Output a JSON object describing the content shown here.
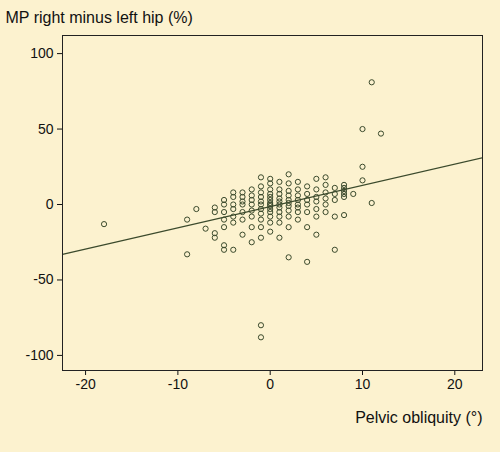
{
  "chart_data": {
    "type": "scatter",
    "xlabel": "Pelvic obliquity (°)",
    "ylabel": "MP right minus left hip (%)",
    "color": "#3b4a2c",
    "marker": "open_circle",
    "x": [
      -18,
      -9,
      -9,
      -8,
      -7,
      -6,
      -6,
      -6,
      -6,
      -5,
      -5,
      -5,
      -5,
      -5,
      -5,
      -5,
      -4,
      -4,
      -4,
      -4,
      -4,
      -4,
      -4,
      -3,
      -3,
      -3,
      -3,
      -3,
      -3,
      -3,
      -2,
      -2,
      -2,
      -2,
      -2,
      -2,
      -2,
      -2,
      -1,
      -1,
      -1,
      -1,
      -1,
      -1,
      -1,
      -1,
      -1,
      -1,
      -1,
      -1,
      -1,
      0,
      0,
      0,
      0,
      0,
      0,
      0,
      0,
      0,
      0,
      0,
      0,
      0,
      0,
      1,
      1,
      1,
      1,
      1,
      1,
      1,
      1,
      1,
      1,
      1,
      2,
      2,
      2,
      2,
      2,
      2,
      2,
      2,
      2,
      2,
      2,
      3,
      3,
      3,
      3,
      3,
      3,
      3,
      3,
      4,
      4,
      4,
      4,
      4,
      4,
      4,
      5,
      5,
      5,
      5,
      5,
      5,
      5,
      6,
      6,
      6,
      6,
      6,
      6,
      7,
      7,
      7,
      7,
      7,
      8,
      8,
      8,
      8,
      8,
      8,
      9,
      10,
      10,
      10,
      11,
      11,
      12
    ],
    "y": [
      -13,
      -33,
      -10,
      -3,
      -16,
      -22,
      -19,
      -5,
      -2,
      -30,
      -27,
      -15,
      -10,
      -5,
      0,
      3,
      -30,
      -12,
      -8,
      -3,
      0,
      5,
      8,
      -20,
      -10,
      -5,
      0,
      2,
      5,
      8,
      -25,
      -15,
      -8,
      -4,
      0,
      3,
      6,
      10,
      -88,
      -80,
      -22,
      -15,
      -10,
      -6,
      -3,
      0,
      2,
      5,
      8,
      12,
      18,
      -18,
      -12,
      -8,
      -5,
      -3,
      -1,
      0,
      1,
      3,
      5,
      7,
      10,
      14,
      17,
      -22,
      -12,
      -8,
      -5,
      -2,
      0,
      2,
      4,
      7,
      10,
      15,
      -35,
      -15,
      -8,
      -4,
      -1,
      1,
      3,
      6,
      9,
      14,
      20,
      -10,
      -5,
      -2,
      0,
      3,
      6,
      10,
      15,
      -38,
      -15,
      -5,
      0,
      3,
      7,
      12,
      -20,
      -8,
      -3,
      2,
      5,
      10,
      17,
      -5,
      0,
      4,
      8,
      13,
      18,
      -30,
      -8,
      3,
      7,
      11,
      -7,
      5,
      7,
      9,
      11,
      13,
      7,
      16,
      25,
      50,
      1,
      81,
      47
    ],
    "trend_line": {
      "x": [
        -22.5,
        23
      ],
      "y": [
        -33,
        31
      ]
    },
    "xlim": [
      -22.5,
      23
    ],
    "ylim": [
      -110,
      112
    ],
    "xticks": [
      -20,
      -10,
      0,
      10,
      20
    ],
    "yticks": [
      -100,
      -50,
      0,
      50,
      100
    ]
  }
}
